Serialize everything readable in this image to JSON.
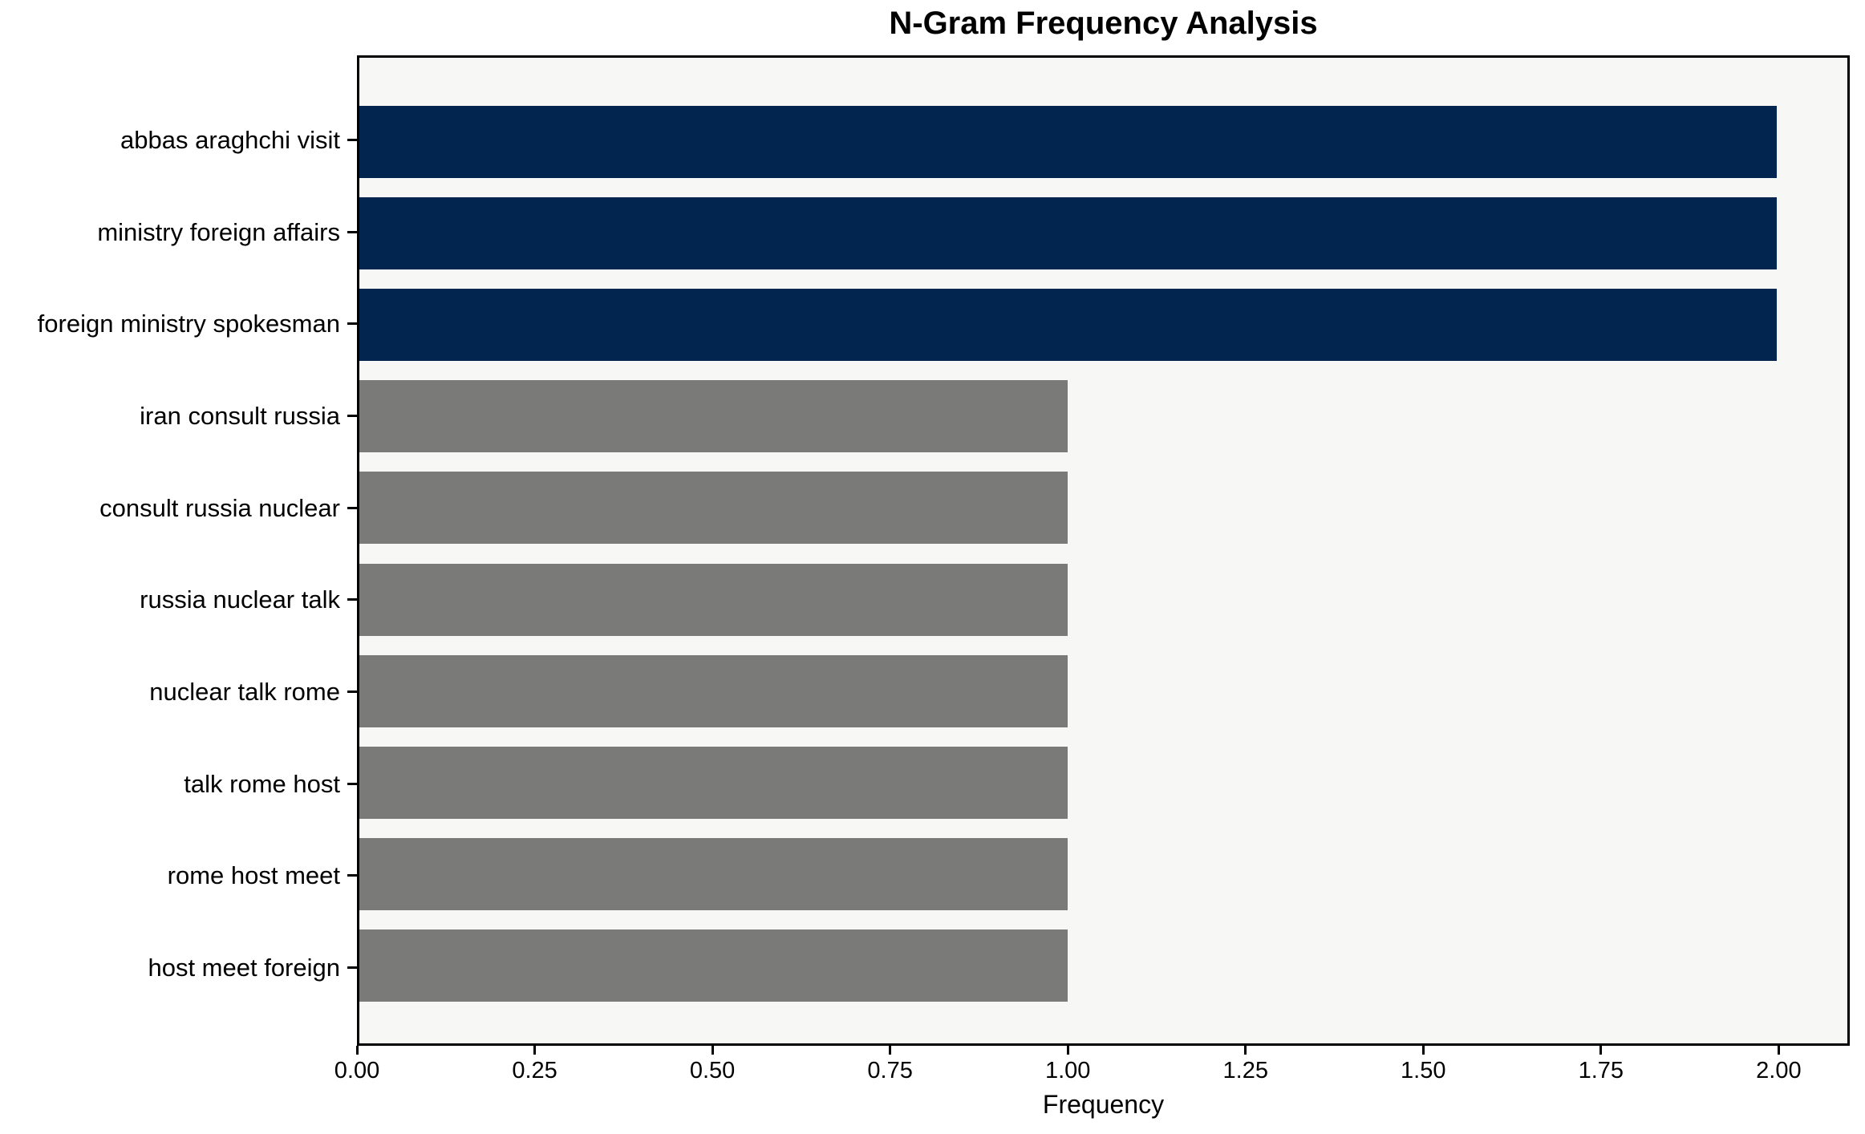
{
  "chart_data": {
    "type": "bar",
    "orientation": "horizontal",
    "title": "N-Gram Frequency Analysis",
    "xlabel": "Frequency",
    "ylabel": "",
    "categories": [
      "abbas araghchi visit",
      "ministry foreign affairs",
      "foreign ministry spokesman",
      "iran consult russia",
      "consult russia nuclear",
      "russia nuclear talk",
      "nuclear talk rome",
      "talk rome host",
      "rome host meet",
      "host meet foreign"
    ],
    "values": [
      2,
      2,
      2,
      1,
      1,
      1,
      1,
      1,
      1,
      1
    ],
    "bar_colors": [
      "#022550",
      "#022550",
      "#022550",
      "#7a7b78",
      "#7a7b78",
      "#7a7b78",
      "#7a7b78",
      "#7a7b78",
      "#7a7b78",
      "#7a7b78"
    ],
    "xlim": [
      0,
      2.1
    ],
    "xtick_labels": [
      "0.00",
      "0.25",
      "0.50",
      "0.75",
      "1.00",
      "1.25",
      "1.50",
      "1.75",
      "2.00"
    ],
    "grid": false,
    "legend": "none",
    "plot_background": "#f7f7f5",
    "axis_color": "#000000"
  }
}
